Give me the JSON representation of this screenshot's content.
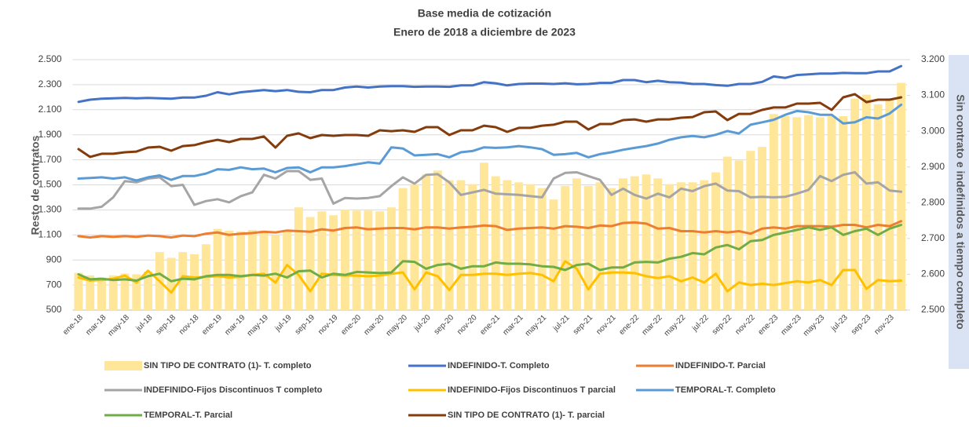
{
  "chart_data": {
    "type": "combo",
    "title": "Base media de cotización",
    "subtitle": "Enero de 2018 a diciembre de 2023",
    "ylabel": "Resto de contratos",
    "y2label": "Sin contrato e indefinidos a tiempo completo",
    "categories": [
      "ene-18",
      null,
      "mar-18",
      null,
      "may-18",
      null,
      "jul-18",
      null,
      "sep-18",
      null,
      "nov-18",
      null,
      "ene-19",
      null,
      "mar-19",
      null,
      "may-19",
      null,
      "jul-19",
      null,
      "sep-19",
      null,
      "nov-19",
      null,
      "ene-20",
      null,
      "mar-20",
      null,
      "may-20",
      null,
      "jul-20",
      null,
      "sep-20",
      null,
      "nov-20",
      null,
      "ene-21",
      null,
      "mar-21",
      null,
      "may-21",
      null,
      "jul-21",
      null,
      "sep-21",
      null,
      "nov-21",
      null,
      "ene-22",
      null,
      "mar-22",
      null,
      "may-22",
      null,
      "jul-22",
      null,
      "sep-22",
      null,
      "nov-22",
      null,
      "ene-23",
      null,
      "mar-23",
      null,
      "may-23",
      null,
      "jul-23",
      null,
      "sep-23",
      null,
      "nov-23",
      null
    ],
    "ylim": [
      500,
      2500
    ],
    "yticks": [
      500,
      700,
      900,
      {
        "value": 1100,
        "label": "1.100"
      },
      {
        "value": 1300,
        "label": "1.300"
      },
      {
        "value": 1500,
        "label": "1.500"
      },
      {
        "value": 1700,
        "label": "1.700"
      },
      {
        "value": 1900,
        "label": "1.900"
      },
      {
        "value": 2100,
        "label": "2.100"
      },
      {
        "value": 2300,
        "label": "2.300"
      },
      {
        "value": 2500,
        "label": "2.500"
      }
    ],
    "y2lim": [
      2500,
      3200
    ],
    "y2ticks": [
      {
        "value": 2500,
        "label": "2.500"
      },
      {
        "value": 2600,
        "label": "2.600"
      },
      {
        "value": 2700,
        "label": "2.700"
      },
      {
        "value": 2800,
        "label": "2.800"
      },
      {
        "value": 2900,
        "label": "2.900"
      },
      {
        "value": 3000,
        "label": "3.000"
      },
      {
        "value": 3100,
        "label": "3.100"
      },
      {
        "value": 3200,
        "label": "3.200"
      }
    ],
    "grid": true,
    "legend": "bottom",
    "series": [
      {
        "name": "SIN TIPO DE CONTRATO (1)- T. completo",
        "type": "bar",
        "axis": "y2",
        "color": "#ffe699",
        "values": [
          2604,
          2597,
          2591,
          2597,
          2602,
          2600,
          2608,
          2662,
          2646,
          2662,
          2656,
          2684,
          2727,
          2722,
          2720,
          2724,
          2722,
          2709,
          2724,
          2787,
          2760,
          2776,
          2765,
          2781,
          2778,
          2778,
          2776,
          2787,
          2841,
          2852,
          2879,
          2890,
          2863,
          2863,
          2852,
          2912,
          2874,
          2863,
          2857,
          2852,
          2841,
          2809,
          2847,
          2868,
          2847,
          2857,
          2841,
          2868,
          2874,
          2879,
          2868,
          2852,
          2857,
          2857,
          2863,
          2885,
          2929,
          2918,
          2945,
          2956,
          3048,
          3042,
          3039,
          3045,
          3039,
          3042,
          3042,
          3091,
          3102,
          3075,
          3092,
          3135
        ]
      },
      {
        "name": "INDEFINIDO-T. Completo",
        "type": "line",
        "axis": "y2",
        "color": "#4472c4",
        "values": [
          3082,
          3088,
          3091,
          3092,
          3093,
          3092,
          3093,
          3092,
          3091,
          3094,
          3094,
          3099,
          3109,
          3103,
          3109,
          3112,
          3115,
          3112,
          3115,
          3110,
          3109,
          3115,
          3115,
          3122,
          3125,
          3122,
          3125,
          3126,
          3126,
          3124,
          3125,
          3125,
          3124,
          3128,
          3128,
          3137,
          3134,
          3128,
          3132,
          3133,
          3133,
          3132,
          3134,
          3131,
          3132,
          3135,
          3135,
          3143,
          3143,
          3137,
          3141,
          3137,
          3136,
          3132,
          3132,
          3129,
          3127,
          3132,
          3132,
          3138,
          3153,
          3149,
          3157,
          3159,
          3161,
          3161,
          3163,
          3162,
          3162,
          3167,
          3167,
          3182
        ]
      },
      {
        "name": "INDEFINIDO-T. Parcial",
        "type": "line",
        "color": "#ed7d31",
        "values": [
          1090,
          1080,
          1090,
          1085,
          1090,
          1085,
          1095,
          1090,
          1080,
          1095,
          1090,
          1110,
          1120,
          1100,
          1110,
          1115,
          1125,
          1120,
          1135,
          1130,
          1125,
          1145,
          1135,
          1155,
          1160,
          1145,
          1150,
          1155,
          1155,
          1145,
          1160,
          1160,
          1150,
          1160,
          1165,
          1175,
          1170,
          1140,
          1150,
          1155,
          1160,
          1150,
          1170,
          1165,
          1155,
          1175,
          1170,
          1195,
          1200,
          1190,
          1150,
          1155,
          1130,
          1130,
          1120,
          1130,
          1120,
          1130,
          1110,
          1150,
          1160,
          1150,
          1170,
          1170,
          1170,
          1165,
          1180,
          1180,
          1160,
          1180,
          1170,
          1210
        ]
      },
      {
        "name": "INDEFINIDO-Fijos Discontinuos T completo",
        "type": "line",
        "color": "#a5a5a5",
        "values": [
          1310,
          1310,
          1325,
          1400,
          1530,
          1520,
          1550,
          1560,
          1490,
          1500,
          1340,
          1370,
          1385,
          1360,
          1410,
          1440,
          1580,
          1550,
          1610,
          1610,
          1540,
          1550,
          1350,
          1395,
          1390,
          1395,
          1410,
          1490,
          1560,
          1510,
          1580,
          1585,
          1520,
          1420,
          1440,
          1460,
          1430,
          1425,
          1420,
          1410,
          1400,
          1550,
          1595,
          1600,
          1570,
          1540,
          1420,
          1470,
          1420,
          1390,
          1430,
          1400,
          1470,
          1450,
          1490,
          1510,
          1455,
          1450,
          1400,
          1405,
          1400,
          1405,
          1430,
          1460,
          1570,
          1530,
          1580,
          1600,
          1510,
          1520,
          1455,
          1445
        ]
      },
      {
        "name": "INDEFINIDO-Fijos Discontinuos T parcial",
        "type": "line",
        "color": "#ffc000",
        "values": [
          760,
          735,
          740,
          750,
          775,
          720,
          815,
          730,
          640,
          770,
          760,
          765,
          770,
          760,
          765,
          780,
          790,
          720,
          860,
          780,
          650,
          790,
          780,
          775,
          775,
          770,
          775,
          790,
          800,
          665,
          800,
          770,
          660,
          780,
          780,
          790,
          790,
          780,
          790,
          795,
          780,
          730,
          890,
          830,
          665,
          790,
          800,
          800,
          795,
          770,
          755,
          770,
          730,
          760,
          720,
          790,
          650,
          720,
          700,
          710,
          700,
          715,
          730,
          720,
          740,
          700,
          820,
          820,
          670,
          740,
          730,
          735
        ]
      },
      {
        "name": "TEMPORAL-T. Completo",
        "type": "line",
        "color": "#5b9bd5",
        "values": [
          1550,
          1555,
          1560,
          1550,
          1560,
          1535,
          1560,
          1575,
          1540,
          1570,
          1570,
          1590,
          1625,
          1620,
          1640,
          1625,
          1630,
          1600,
          1635,
          1640,
          1600,
          1640,
          1640,
          1650,
          1665,
          1680,
          1670,
          1800,
          1790,
          1735,
          1740,
          1745,
          1720,
          1760,
          1770,
          1800,
          1795,
          1800,
          1810,
          1800,
          1785,
          1740,
          1745,
          1755,
          1720,
          1745,
          1760,
          1780,
          1795,
          1810,
          1830,
          1860,
          1880,
          1890,
          1880,
          1900,
          1930,
          1910,
          1980,
          2000,
          2020,
          2060,
          2090,
          2080,
          2060,
          2060,
          1990,
          2000,
          2040,
          2030,
          2070,
          2140
        ]
      },
      {
        "name": "TEMPORAL-T. Parcial",
        "type": "line",
        "color": "#70ad47",
        "values": [
          785,
          745,
          750,
          740,
          745,
          735,
          770,
          790,
          730,
          750,
          745,
          770,
          780,
          780,
          770,
          780,
          775,
          790,
          760,
          810,
          815,
          760,
          790,
          780,
          805,
          800,
          795,
          800,
          890,
          885,
          830,
          860,
          870,
          830,
          850,
          850,
          880,
          870,
          870,
          865,
          850,
          845,
          820,
          860,
          870,
          820,
          840,
          840,
          880,
          885,
          880,
          910,
          925,
          955,
          945,
          1000,
          1020,
          985,
          1050,
          1060,
          1100,
          1120,
          1140,
          1160,
          1140,
          1160,
          1100,
          1130,
          1150,
          1100,
          1150,
          1180
        ]
      },
      {
        "name": "SIN TIPO DE CONTRATO (1)- T. parcial",
        "type": "line",
        "color": "#843c0c",
        "values": [
          1785,
          1723,
          1748,
          1748,
          1760,
          1766,
          1798,
          1804,
          1773,
          1810,
          1817,
          1842,
          1860,
          1842,
          1867,
          1867,
          1886,
          1798,
          1892,
          1911,
          1873,
          1898,
          1892,
          1898,
          1898,
          1892,
          1936,
          1929,
          1936,
          1923,
          1961,
          1961,
          1898,
          1936,
          1936,
          1973,
          1961,
          1923,
          1955,
          1955,
          1973,
          1980,
          2005,
          2005,
          1942,
          1986,
          1986,
          2017,
          2023,
          2005,
          2023,
          2023,
          2036,
          2042,
          2080,
          2086,
          2017,
          2067,
          2067,
          2099,
          2118,
          2118,
          2149,
          2149,
          2155,
          2099,
          2199,
          2224,
          2161,
          2180,
          2180,
          2199
        ]
      }
    ]
  }
}
